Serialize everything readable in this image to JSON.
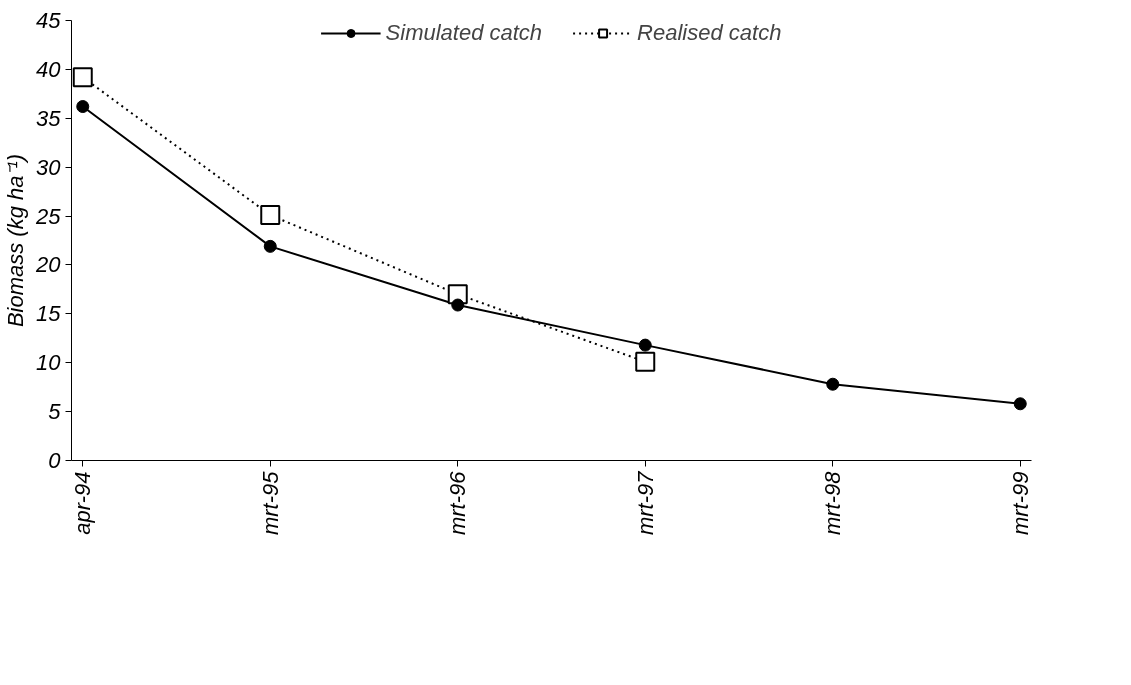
{
  "chart_data": {
    "type": "line",
    "ylabel": "Biomass (kg ha⁻¹)",
    "categories": [
      "apr-94",
      "mrt-95",
      "mrt-96",
      "mrt-97",
      "mrt-98",
      "mrt-99"
    ],
    "series": [
      {
        "name": "Simulated catch",
        "color": "#000000",
        "marker": "circle",
        "line_style": "solid",
        "values": [
          36.2,
          21.9,
          15.9,
          11.8,
          7.8,
          5.8
        ]
      },
      {
        "name": "Realised catch",
        "color": "#000000",
        "marker": "square",
        "line_style": "dotted",
        "values": [
          39.2,
          25.1,
          17.0,
          10.1,
          null,
          null
        ]
      }
    ],
    "ylim": [
      0,
      45
    ],
    "yticks": [
      0,
      5,
      10,
      15,
      20,
      25,
      30,
      35,
      40,
      45
    ],
    "grid": false,
    "legend": "top"
  }
}
